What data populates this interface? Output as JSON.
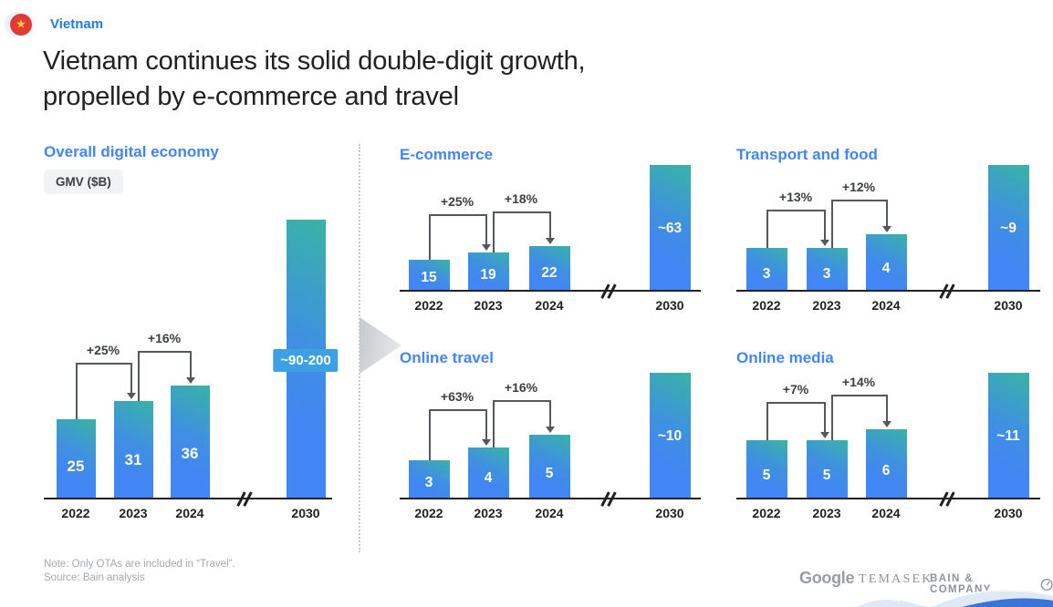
{
  "page": {
    "country_label": "Vietnam",
    "title_line1": "Vietnam continues its solid double-digit growth,",
    "title_line2": "propelled by e-commerce and travel",
    "note": "Note: Only OTAs are included in “Travel”.",
    "source": "Source: Bain analysis",
    "logos": {
      "google": "Google",
      "temasek": "TEMASEK",
      "bain": "BAIN & COMPANY"
    }
  },
  "colors": {
    "accent_blue": "#4285F4",
    "bar_teal_top": "#39B3A6",
    "bar_blue_bottom": "#4285F4",
    "chip_blue": "#3EA0E4",
    "arrow_gray": "#55585C",
    "axis_dark": "#1F2125",
    "text_dark": "#202124",
    "muted_gray": "#A2A8AE",
    "flag_red": "#E23A34",
    "star_yellow": "#FFD43B"
  },
  "chart_data": [
    {
      "id": "overall",
      "type": "bar",
      "title": "Overall digital economy",
      "unit_badge": "GMV ($B)",
      "categories": [
        "2022",
        "2023",
        "2024",
        "2030"
      ],
      "values": [
        25,
        31,
        36,
        null
      ],
      "bar_labels": [
        "25",
        "31",
        "36",
        "~90-200"
      ],
      "value_2030_range": [
        90,
        200
      ],
      "growth_labels": [
        "+25%",
        "+16%"
      ],
      "axis_break_after": "2024",
      "ylabel": "GMV ($B)"
    },
    {
      "id": "ecommerce",
      "type": "bar",
      "title": "E-commerce",
      "categories": [
        "2022",
        "2023",
        "2024",
        "2030"
      ],
      "values": [
        15,
        19,
        22,
        63
      ],
      "bar_labels": [
        "15",
        "19",
        "22",
        "~63"
      ],
      "growth_labels": [
        "+25%",
        "+18%"
      ],
      "axis_break_after": "2024",
      "ylabel": "GMV ($B)"
    },
    {
      "id": "transport",
      "type": "bar",
      "title": "Transport and food",
      "categories": [
        "2022",
        "2023",
        "2024",
        "2030"
      ],
      "values": [
        3,
        3,
        4,
        9
      ],
      "bar_labels": [
        "3",
        "3",
        "4",
        "~9"
      ],
      "growth_labels": [
        "+13%",
        "+12%"
      ],
      "axis_break_after": "2024",
      "ylabel": "GMV ($B)"
    },
    {
      "id": "travel",
      "type": "bar",
      "title": "Online travel",
      "categories": [
        "2022",
        "2023",
        "2024",
        "2030"
      ],
      "values": [
        3,
        4,
        5,
        10
      ],
      "bar_labels": [
        "3",
        "4",
        "5",
        "~10"
      ],
      "growth_labels": [
        "+63%",
        "+16%"
      ],
      "axis_break_after": "2024",
      "ylabel": "GMV ($B)"
    },
    {
      "id": "media",
      "type": "bar",
      "title": "Online media",
      "categories": [
        "2022",
        "2023",
        "2024",
        "2030"
      ],
      "values": [
        5,
        5,
        6,
        11
      ],
      "bar_labels": [
        "5",
        "5",
        "6",
        "~11"
      ],
      "growth_labels": [
        "+7%",
        "+14%"
      ],
      "axis_break_after": "2024",
      "ylabel": "GMV ($B)"
    }
  ]
}
